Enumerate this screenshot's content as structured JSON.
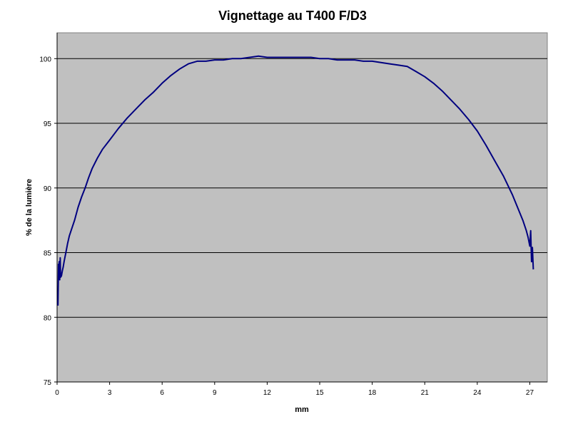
{
  "chart_data": {
    "type": "line",
    "title": "Vignettage au T400 F/D3",
    "xlabel": "mm",
    "ylabel": "% de la lumière",
    "xlim": [
      0,
      28
    ],
    "ylim": [
      75,
      102
    ],
    "x_ticks": [
      0,
      3,
      6,
      9,
      12,
      15,
      18,
      21,
      24,
      27
    ],
    "y_ticks": [
      75,
      80,
      85,
      90,
      95,
      100
    ],
    "grid": "horizontal",
    "legend": "none",
    "colors": {
      "plot_background": "#c0c0c0",
      "line": "#000080",
      "gridline": "#000000"
    },
    "series": [
      {
        "x": [
          0.05,
          0.08,
          0.1,
          0.12,
          0.15,
          0.18,
          0.2,
          0.25,
          0.3,
          0.35,
          0.4,
          0.5,
          0.6,
          0.7,
          0.8,
          1.0,
          1.2,
          1.4,
          1.6,
          1.8,
          2.0,
          2.3,
          2.6,
          3.0,
          3.5,
          4.0,
          4.5,
          5.0,
          5.5,
          6.0,
          6.5,
          7.0,
          7.5,
          8.0,
          8.5,
          9.0,
          9.5,
          10.0,
          10.5,
          11.0,
          11.5,
          12.0,
          12.5,
          13.0,
          13.5,
          14.0,
          14.5,
          15.0,
          15.5,
          16.0,
          16.5,
          17.0,
          17.5,
          18.0,
          18.5,
          19.0,
          19.5,
          20.0,
          20.5,
          21.0,
          21.5,
          22.0,
          22.5,
          23.0,
          23.5,
          24.0,
          24.5,
          25.0,
          25.5,
          26.0,
          26.3,
          26.6,
          26.8,
          26.9,
          27.0,
          27.05,
          27.1,
          27.15,
          27.2
        ],
        "y": [
          80.9,
          84.1,
          83.0,
          84.3,
          82.9,
          84.6,
          83.1,
          83.2,
          83.6,
          83.9,
          84.3,
          85.0,
          85.7,
          86.3,
          86.7,
          87.5,
          88.5,
          89.3,
          90.0,
          90.8,
          91.5,
          92.3,
          93.0,
          93.7,
          94.6,
          95.4,
          96.1,
          96.8,
          97.4,
          98.1,
          98.7,
          99.2,
          99.6,
          99.8,
          99.8,
          99.9,
          99.9,
          100.0,
          100.0,
          100.1,
          100.2,
          100.1,
          100.1,
          100.1,
          100.1,
          100.1,
          100.1,
          100.0,
          100.0,
          99.9,
          99.9,
          99.9,
          99.8,
          99.8,
          99.7,
          99.6,
          99.5,
          99.4,
          99.0,
          98.6,
          98.1,
          97.5,
          96.8,
          96.1,
          95.3,
          94.4,
          93.3,
          92.1,
          90.9,
          89.5,
          88.5,
          87.5,
          86.7,
          86.2,
          85.5,
          86.7,
          84.3,
          85.4,
          83.7
        ]
      }
    ]
  }
}
